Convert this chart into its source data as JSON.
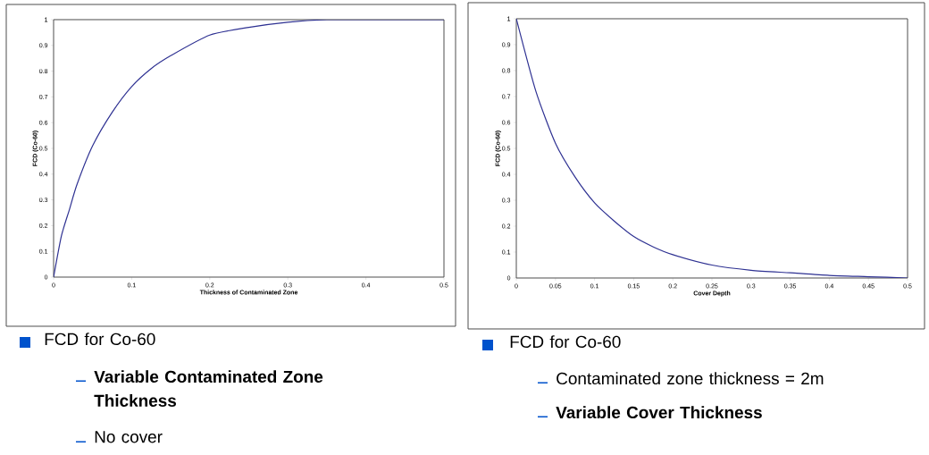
{
  "chart_data": [
    {
      "type": "line",
      "xlabel": "Thickness of Contaminated Zone",
      "ylabel": "FCD (Co-60)",
      "color": "#2e3192",
      "x": [
        0,
        0.01,
        0.02,
        0.03,
        0.05,
        0.075,
        0.1,
        0.125,
        0.15,
        0.2,
        0.25,
        0.3,
        0.35,
        0.4,
        0.5
      ],
      "values": [
        0,
        0.16,
        0.26,
        0.36,
        0.51,
        0.64,
        0.74,
        0.81,
        0.86,
        0.94,
        0.97,
        0.99,
        1,
        1,
        1
      ],
      "xlim": [
        0,
        0.5
      ],
      "ylim": [
        0,
        1
      ],
      "xticks": [
        0,
        0.1,
        0.2,
        0.3,
        0.4,
        0.5
      ],
      "yticks": [
        0,
        0.1,
        0.2,
        0.3,
        0.4,
        0.5,
        0.6,
        0.7,
        0.8,
        0.9,
        1
      ],
      "annotations": [
        "FCD for Co-60",
        "**Variable Contaminated Zone Thickness**",
        "No cover"
      ]
    },
    {
      "type": "line",
      "xlabel": "Cover Depth",
      "ylabel": "FCD (Co-60)",
      "color": "#2e3192",
      "x": [
        0,
        0.025,
        0.05,
        0.075,
        0.1,
        0.125,
        0.15,
        0.175,
        0.2,
        0.25,
        0.3,
        0.35,
        0.4,
        0.45,
        0.5
      ],
      "values": [
        1,
        0.72,
        0.52,
        0.39,
        0.29,
        0.22,
        0.16,
        0.12,
        0.09,
        0.05,
        0.03,
        0.02,
        0.01,
        0.005,
        0
      ],
      "xlim": [
        0,
        0.5
      ],
      "ylim": [
        0,
        1
      ],
      "xticks": [
        0,
        0.05,
        0.1,
        0.15,
        0.2,
        0.25,
        0.3,
        0.35,
        0.4,
        0.45,
        0.5
      ],
      "yticks": [
        0,
        0.1,
        0.2,
        0.3,
        0.4,
        0.5,
        0.6,
        0.7,
        0.8,
        0.9,
        1
      ],
      "annotations": [
        "FCD for Co-60",
        "Contaminated zone thickness = 2m",
        "**Variable Cover Thickness**"
      ]
    }
  ]
}
